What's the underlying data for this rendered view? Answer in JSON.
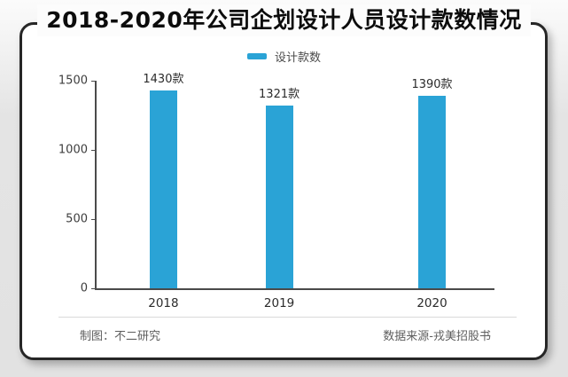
{
  "title": "2018-2020年公司企划设计人员设计款数情况",
  "legend": {
    "label": "设计款数",
    "swatch_color": "#2aa3d6"
  },
  "chart_data": {
    "type": "bar",
    "title": "2018-2020年公司企划设计人员设计款数情况",
    "categories": [
      "2018",
      "2019",
      "2020"
    ],
    "series": [
      {
        "name": "设计款数",
        "values": [
          1430,
          1321,
          1390
        ]
      }
    ],
    "data_labels": [
      "1430款",
      "1321款",
      "1390款"
    ],
    "ylim": [
      0,
      1500
    ],
    "yticks": [
      0,
      500,
      1000,
      1500
    ],
    "bar_color": "#2aa3d6",
    "grid": false,
    "legend_position": "top"
  },
  "colors": {
    "card_border": "#262626",
    "axis": "#4a4a4a",
    "page_background": "#e2e2e2",
    "card_background": "#ffffff"
  },
  "footer": {
    "left": "制图：不二研究",
    "right": "数据来源-戎美招股书"
  }
}
